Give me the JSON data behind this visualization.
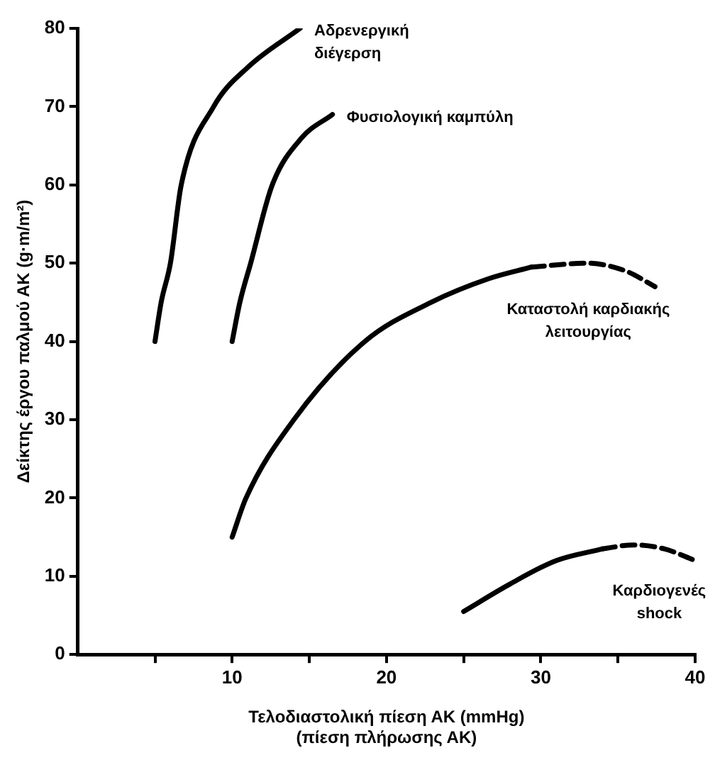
{
  "chart_data": {
    "type": "line",
    "xlabel": "Τελοδιαστολική πίεση ΑΚ (mmHg)\n(πίεση πλήρωσης ΑΚ)",
    "ylabel": "Δείκτης έργου παλμού ΑΚ (g·m/m²)",
    "xlim": [
      0,
      40
    ],
    "ylim": [
      0,
      80
    ],
    "xticks": [
      {
        "value": 5,
        "label": null
      },
      10,
      {
        "value": 15,
        "label": null
      },
      20,
      {
        "value": 25,
        "label": null
      },
      30,
      {
        "value": 35,
        "label": null
      },
      40
    ],
    "yticks": [
      0,
      10,
      20,
      30,
      40,
      50,
      60,
      70,
      80
    ],
    "grid": false,
    "legend": false,
    "marker": "none",
    "series": [
      {
        "name": "Αδρενεργική\nδιέγερση",
        "color": "#000000",
        "line_style": "solid",
        "x": [
          5,
          5.4,
          6,
          6.7,
          8.8,
          11,
          14.4
        ],
        "values": [
          40,
          45,
          50,
          60,
          70,
          75,
          80
        ]
      },
      {
        "name": "Φυσιολογική καμπύλη",
        "color": "#000000",
        "line_style": "solid",
        "x": [
          10,
          10.5,
          11.2,
          12.6,
          14.5,
          16.5
        ],
        "values": [
          40,
          45,
          50,
          60,
          66,
          69
        ]
      },
      {
        "name": "Καταστολή καρδιακής\nλειτουργίας",
        "color": "#000000",
        "line_style": "solid",
        "x": [
          10,
          10.9,
          14,
          18.6,
          22.9,
          26.6,
          29.4
        ],
        "values": [
          15,
          20,
          30,
          40,
          45,
          48,
          49.5
        ]
      },
      {
        "color": "#000000",
        "line_style": "dashed",
        "x": [
          29.4,
          33,
          35.5,
          37.4
        ],
        "values": [
          49.5,
          50,
          49,
          47
        ]
      },
      {
        "name": "Καρδιογενές\nshock",
        "color": "#000000",
        "line_style": "solid",
        "x": [
          25,
          28,
          31,
          34
        ],
        "values": [
          5.5,
          9,
          12,
          13.5
        ]
      },
      {
        "color": "#000000",
        "line_style": "dashed",
        "x": [
          34,
          36,
          38,
          40
        ],
        "values": [
          13.5,
          14,
          13.5,
          12
        ]
      }
    ]
  }
}
